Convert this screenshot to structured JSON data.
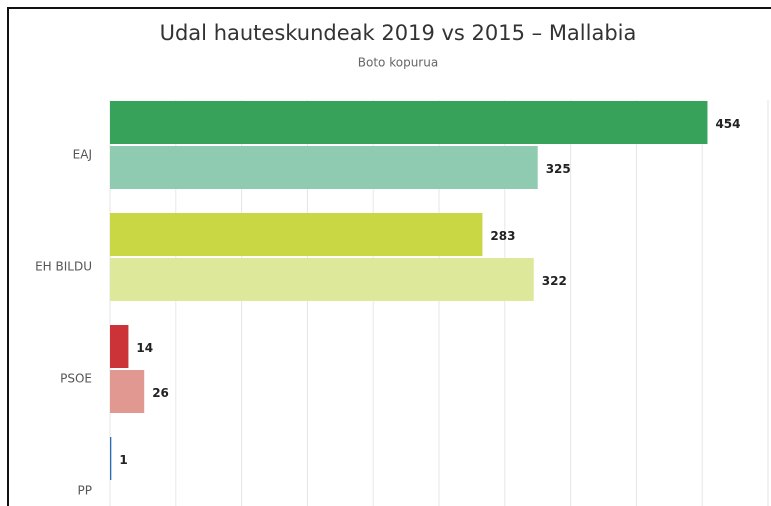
{
  "chart_data": {
    "type": "bar",
    "orientation": "horizontal",
    "title": "Udal hauteskundeak 2019 vs 2015 – Mallabia",
    "subtitle": "Boto kopurua",
    "categories": [
      "EAJ",
      "EH BILDU",
      "PSOE",
      "PP"
    ],
    "series": [
      {
        "colors": [
          "#36a25a",
          "#c9d744",
          "#cc3338",
          "#2b6cb0"
        ],
        "values": [
          454,
          283,
          14,
          1
        ]
      },
      {
        "colors": [
          "#8ecbb0",
          "#dde89b",
          "#e09890",
          "#9dc0e6"
        ],
        "values": [
          325,
          322,
          26,
          null
        ]
      }
    ],
    "xlim": [
      0,
      500
    ],
    "xticks": [
      0,
      50,
      100,
      150,
      200,
      250,
      300,
      350,
      400,
      450,
      500
    ],
    "grid": true
  }
}
